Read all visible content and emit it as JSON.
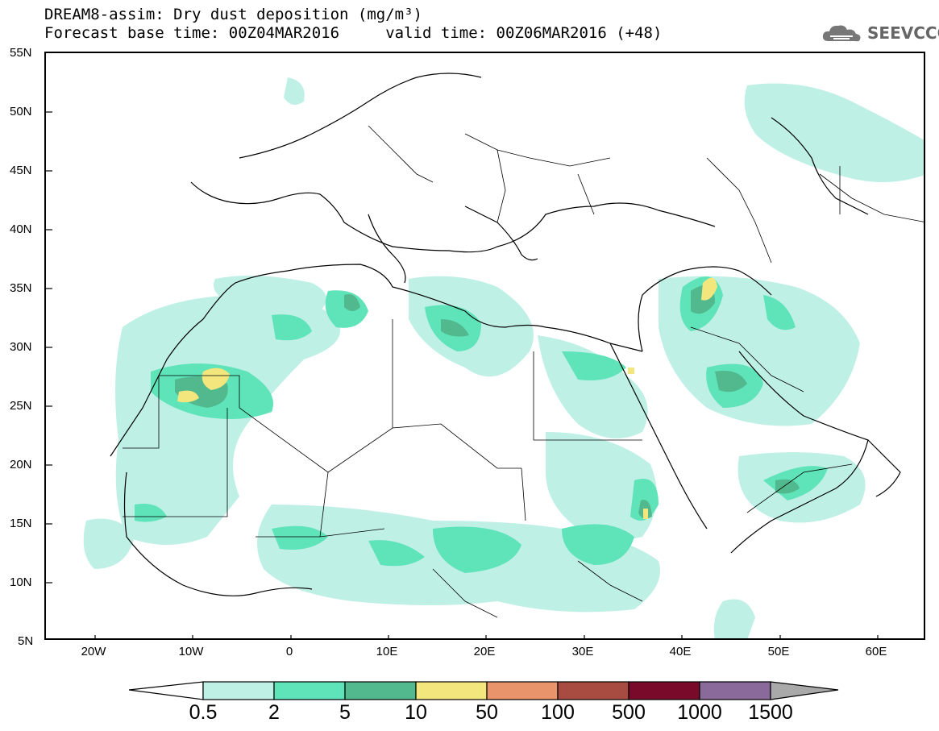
{
  "title": {
    "line1": "DREAM8-assim: Dry dust deposition (mg/m³)",
    "line2": "Forecast base time: 00Z04MAR2016     valid time: 00Z06MAR2016 (+48)"
  },
  "logo": {
    "text": "SEEVCCC",
    "icon": "cloud-icon"
  },
  "map": {
    "lat_labels": [
      "55N",
      "50N",
      "45N",
      "40N",
      "35N",
      "30N",
      "25N",
      "20N",
      "15N",
      "10N",
      "5N"
    ],
    "lon_labels": [
      "20W",
      "10W",
      "0",
      "10E",
      "20E",
      "30E",
      "40E",
      "50E",
      "60E"
    ],
    "lon_range": [
      -25,
      65
    ],
    "lat_range": [
      5,
      55
    ]
  },
  "colorbar": {
    "labels": [
      "0.5",
      "2",
      "5",
      "10",
      "50",
      "100",
      "500",
      "1000",
      "1500"
    ],
    "colors": [
      "#ffffff",
      "#bff0e6",
      "#5fe3b8",
      "#52b98f",
      "#f3e67c",
      "#e9946a",
      "#a84b40",
      "#7a0a2a",
      "#8a6a9a",
      "#a9a9a9"
    ]
  }
}
